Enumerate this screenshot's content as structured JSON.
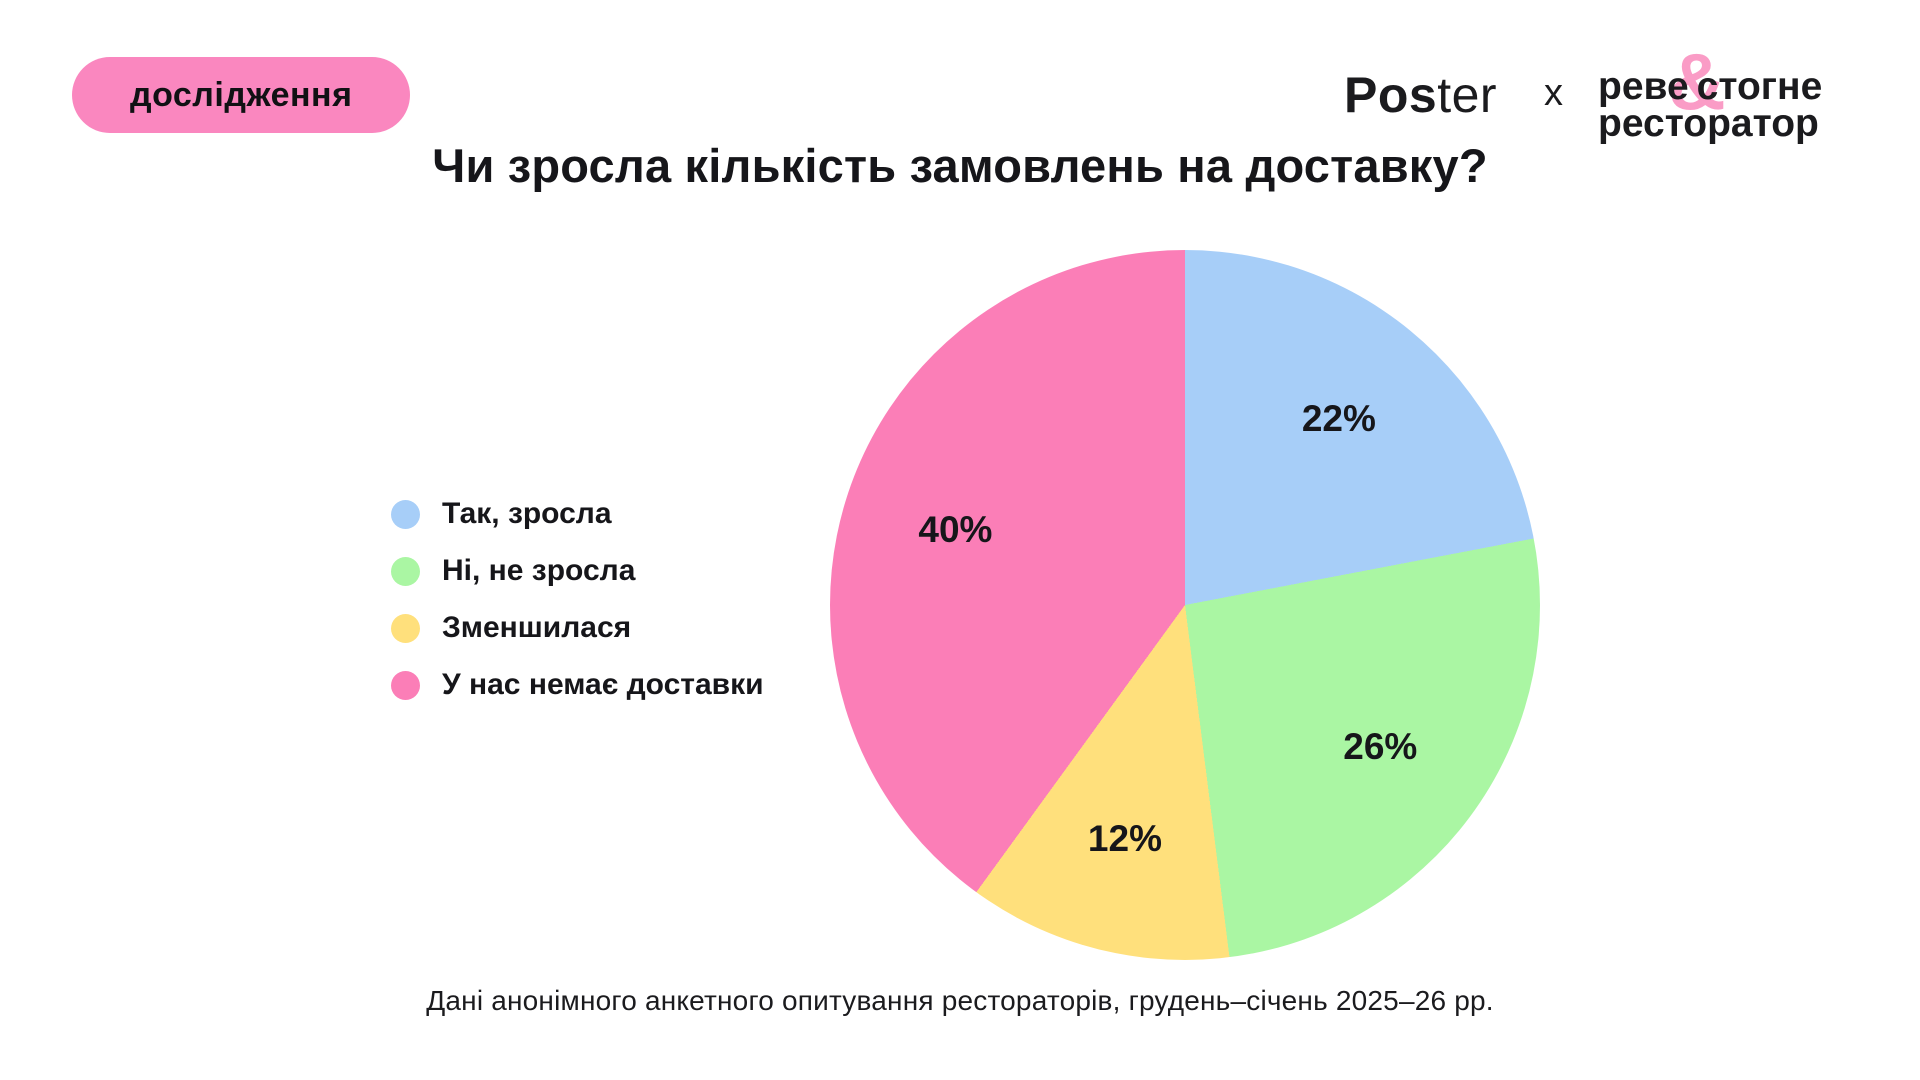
{
  "header": {
    "badge": "дослідження",
    "poster_logo_bold": "Pos",
    "poster_logo_light": "ter",
    "collab_separator": "x",
    "partner_logo": {
      "ampersand": "&",
      "line1_left": "реве",
      "line1_right": "стогне",
      "line2": "ресторатор"
    }
  },
  "title": "Чи зросла кількість замовлень на доставку?",
  "caption": "Дані анонімного анкетного опитування рестораторів, грудень–січень 2025–26 рр.",
  "colors": {
    "badge_background": "#FA87BF",
    "ampersand_pink": "#FA9CC6",
    "text_dark": "#1B1B1E",
    "background": "#FFFFFF"
  },
  "chart_data": {
    "type": "pie",
    "title": "Чи зросла кількість замовлень на доставку?",
    "start_angle_deg": 0,
    "direction": "clockwise",
    "value_label_format": "{value}%",
    "legend_position": "left",
    "segments": [
      {
        "label": "Так, зросла",
        "value_pct": 22,
        "color": "#A7CEF8"
      },
      {
        "label": "Ні, не зросла",
        "value_pct": 26,
        "color": "#AAF6A3"
      },
      {
        "label": "Зменшилася",
        "value_pct": 12,
        "color": "#FFE07C"
      },
      {
        "label": "У нас немає доставки",
        "value_pct": 40,
        "color": "#FB7EB7"
      }
    ]
  }
}
